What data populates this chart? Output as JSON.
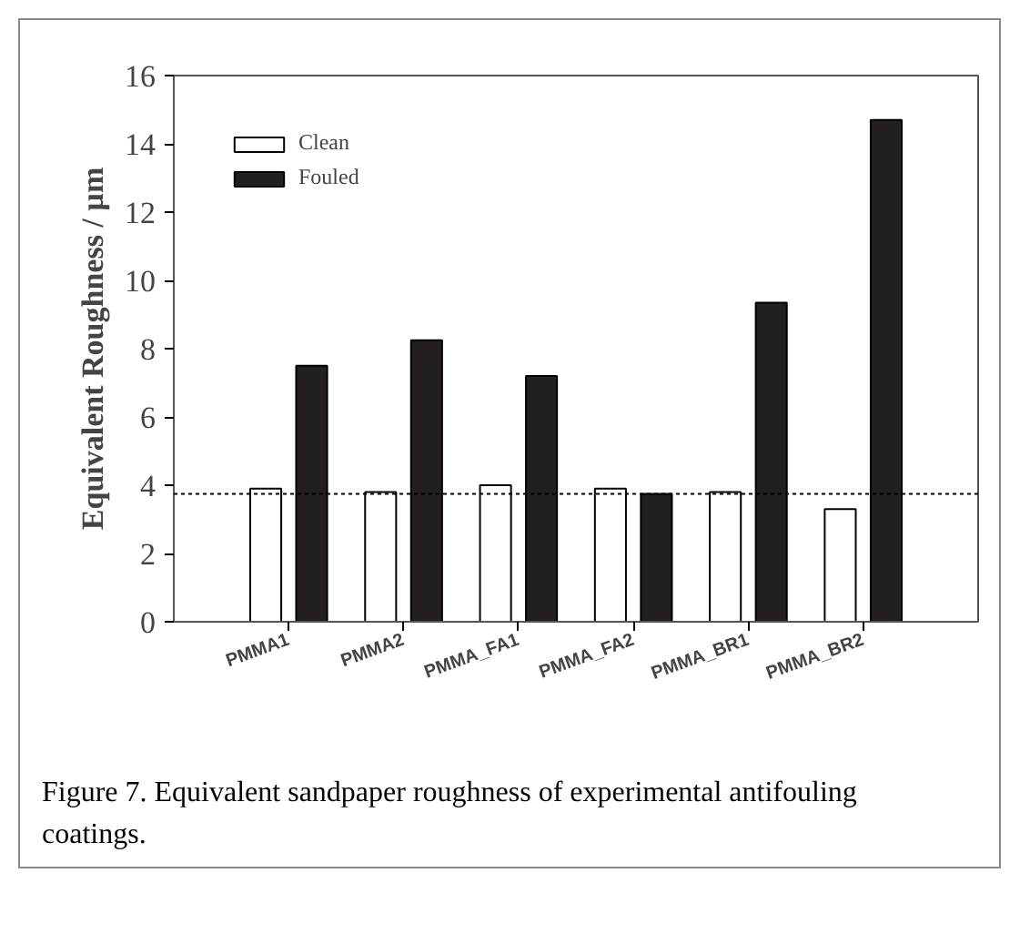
{
  "chart_data": {
    "type": "bar",
    "ylabel": "Equivalent Roughness / µm",
    "categories": [
      "PMMA1",
      "PMMA2",
      "PMMA_FA1",
      "PMMA_FA2",
      "PMMA_BR1",
      "PMMA_BR2"
    ],
    "series": [
      {
        "name": "Clean",
        "color": "#ffffff",
        "values": [
          3.9,
          3.8,
          4.0,
          3.9,
          3.8,
          3.3
        ]
      },
      {
        "name": "Fouled",
        "color": "#231f20",
        "values": [
          7.5,
          8.25,
          7.2,
          3.75,
          9.35,
          14.7
        ]
      }
    ],
    "ylim": [
      0,
      16
    ],
    "yticks": [
      0,
      2,
      4,
      6,
      8,
      10,
      12,
      14,
      16
    ],
    "ref_lines": [
      {
        "axis": "y",
        "value": 3.75,
        "line_style": "dotted"
      }
    ],
    "legend": "top left",
    "annotations": [
      "Figure 7. Equivalent sandpaper roughness of experimental antifouling coatings."
    ]
  }
}
